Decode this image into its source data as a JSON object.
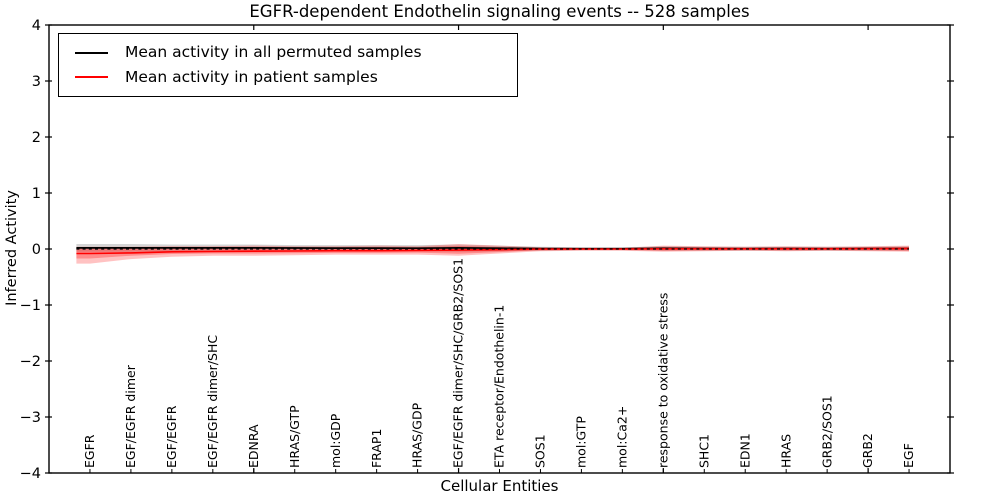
{
  "figure": {
    "title": "EGFR-dependent Endothelin signaling events -- 528 samples"
  },
  "legend": {
    "items": [
      {
        "label": "Mean activity in all permuted samples",
        "color": "#000000",
        "style": "solid"
      },
      {
        "label": "Mean activity in patient samples",
        "color": "#ff0000",
        "style": "solid"
      }
    ],
    "position": "upper left"
  },
  "chart_data": {
    "type": "line",
    "title": "EGFR-dependent Endothelin signaling events -- 528 samples",
    "xlabel": "Cellular Entities",
    "ylabel": "Inferred Activity",
    "ylim": [
      -4,
      4
    ],
    "yticks": [
      -4,
      -3,
      -2,
      -1,
      0,
      1,
      2,
      3,
      4
    ],
    "xticks_major_positions": [
      5,
      10,
      15,
      20
    ],
    "grid": false,
    "legend_position": "upper left",
    "n_samples": 528,
    "categories": [
      "EGFR",
      "EGF/EGFR dimer",
      "EGF/EGFR",
      "EGF/EGFR dimer/SHC",
      "EDNRA",
      "HRAS/GTP",
      "mol:GDP",
      "FRAP1",
      "HRAS/GDP",
      "EGF/EGFR dimer/SHC/GRB2/SOS1",
      "ETA receptor/Endothelin-1",
      "SOS1",
      "mol:GTP",
      "mol:Ca2+",
      "response to oxidative stress",
      "SHC1",
      "EDN1",
      "HRAS",
      "GRB2/SOS1",
      "GRB2",
      "EGF"
    ],
    "series": [
      {
        "name": "Mean activity in all permuted samples",
        "color": "#000000",
        "style": "solid",
        "width": 1.7,
        "values": [
          0.02,
          0.02,
          0.02,
          0.02,
          0.02,
          0.018,
          0.016,
          0.016,
          0.015,
          0.02,
          0.015,
          0.008,
          0.005,
          0.005,
          0.01,
          0.008,
          0.006,
          0.008,
          0.006,
          0.008,
          0.008
        ]
      },
      {
        "name": "Mean activity in patient samples",
        "color": "#ff0000",
        "style": "solid",
        "width": 1.6,
        "values": [
          -0.08,
          -0.07,
          -0.05,
          -0.045,
          -0.04,
          -0.035,
          -0.03,
          -0.03,
          -0.025,
          -0.02,
          -0.012,
          -0.002,
          0.0,
          0.0,
          0.004,
          0.004,
          0.004,
          0.004,
          0.004,
          0.005,
          0.008
        ]
      },
      {
        "name": "zero-reference",
        "color": "#000000",
        "style": "dashed",
        "width": 1.3,
        "values": [
          0,
          0,
          0,
          0,
          0,
          0,
          0,
          0,
          0,
          0,
          0,
          0,
          0,
          0,
          0,
          0,
          0,
          0,
          0,
          0,
          0
        ]
      }
    ],
    "bands": [
      {
        "name": "permuted-samples-spread",
        "color": "#888888",
        "opacity": 0.35,
        "upper": [
          0.09,
          0.09,
          0.08,
          0.08,
          0.08,
          0.07,
          0.07,
          0.07,
          0.07,
          0.08,
          0.06,
          0.04,
          0.03,
          0.03,
          0.05,
          0.04,
          0.04,
          0.04,
          0.04,
          0.04,
          0.05
        ],
        "lower": [
          -0.05,
          -0.05,
          -0.04,
          -0.04,
          -0.04,
          -0.04,
          -0.04,
          -0.04,
          -0.04,
          -0.05,
          -0.04,
          -0.03,
          -0.02,
          -0.02,
          -0.03,
          -0.03,
          -0.03,
          -0.03,
          -0.03,
          -0.03,
          -0.03
        ]
      },
      {
        "name": "patient-spread-outer",
        "color": "#ff0000",
        "opacity": 0.24,
        "upper": [
          0.04,
          0.04,
          0.05,
          0.05,
          0.06,
          0.05,
          0.05,
          0.06,
          0.05,
          0.09,
          0.06,
          0.03,
          0.02,
          0.02,
          0.06,
          0.05,
          0.04,
          0.05,
          0.04,
          0.05,
          0.06
        ],
        "lower": [
          -0.26,
          -0.18,
          -0.14,
          -0.12,
          -0.12,
          -0.11,
          -0.1,
          -0.1,
          -0.1,
          -0.12,
          -0.08,
          -0.04,
          -0.03,
          -0.03,
          -0.05,
          -0.04,
          -0.03,
          -0.04,
          -0.03,
          -0.04,
          -0.05
        ]
      },
      {
        "name": "patient-spread-inner",
        "color": "#ff0000",
        "opacity": 0.28,
        "upper": [
          0.02,
          0.02,
          0.03,
          0.03,
          0.035,
          0.03,
          0.03,
          0.035,
          0.03,
          0.055,
          0.035,
          0.018,
          0.012,
          0.012,
          0.035,
          0.03,
          0.022,
          0.03,
          0.022,
          0.03,
          0.035
        ],
        "lower": [
          -0.17,
          -0.12,
          -0.09,
          -0.08,
          -0.08,
          -0.075,
          -0.07,
          -0.07,
          -0.065,
          -0.085,
          -0.055,
          -0.025,
          -0.018,
          -0.018,
          -0.03,
          -0.025,
          -0.02,
          -0.025,
          -0.02,
          -0.025,
          -0.032
        ]
      }
    ]
  }
}
